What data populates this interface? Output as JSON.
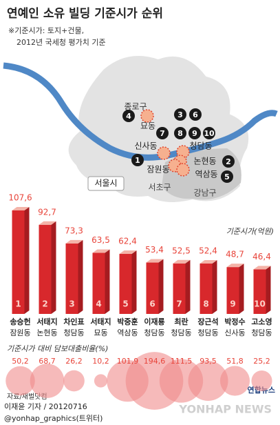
{
  "chart_data": {
    "type": "bar3d",
    "title": "연예인 소유 빌딩 기준시가 순위",
    "subtitle": [
      "※기준시가: 토지+건물,",
      "2012년 국세청 평가치 기준"
    ],
    "unit_label": "기준시가(억원)",
    "categories": [
      "송승헌",
      "서태지",
      "차인표",
      "서태지",
      "박중훈",
      "이재룡",
      "최란",
      "장근석",
      "박정수",
      "고소영"
    ],
    "locations": [
      "잠원동",
      "논현동",
      "청담동",
      "묘동",
      "역삼동",
      "청담동",
      "청담동",
      "청담동",
      "신사동",
      "청담동"
    ],
    "ranks": [
      1,
      2,
      3,
      4,
      5,
      6,
      7,
      8,
      9,
      10
    ],
    "values": [
      107.6,
      92.7,
      73.3,
      63.5,
      62.4,
      53.4,
      52.5,
      52.4,
      48.7,
      46.4
    ],
    "value_labels": [
      "107,6",
      "92,7",
      "73,3",
      "63,5",
      "62,4",
      "53,4",
      "52,5",
      "52,4",
      "48,7",
      "46,4"
    ],
    "color": "#d8282c",
    "bubble_label": "기준시가 대비 담보대출비율(%)",
    "bubble_values": [
      50.2,
      68.7,
      26.2,
      10.2,
      101.9,
      194.6,
      111.5,
      93.5,
      51.8,
      25.2
    ],
    "bubble_value_labels": [
      "50,2",
      "68,7",
      "26,2",
      "10,2",
      "101,9",
      "194,6",
      "111,5",
      "93,5",
      "51,8",
      "25,2"
    ],
    "bubble_color": "#f08c8c"
  },
  "map": {
    "labels": [
      "종로구",
      "묘동",
      "신사동",
      "청담동",
      "논현동",
      "잠원동",
      "역삼동",
      "서울시",
      "서초구",
      "강남구"
    ],
    "markers": [
      "1",
      "2",
      "3",
      "4",
      "5",
      "6",
      "7",
      "8",
      "9",
      "10"
    ]
  },
  "footer": {
    "source": "자료/재벌닷컴",
    "credit": "이재윤 기자 / 20120716",
    "twitter": "@yonhap_graphics(트위터)",
    "logo": "연합뉴스",
    "watermark": "YONHAP NEWS"
  }
}
